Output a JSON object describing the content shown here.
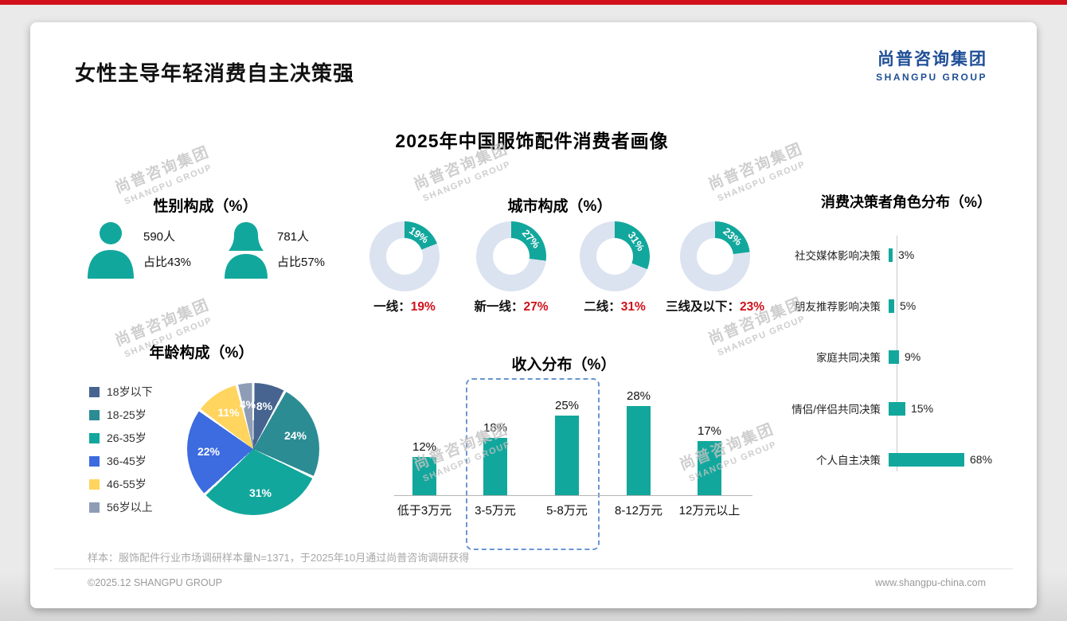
{
  "accent": {
    "teal": "#12a79c",
    "red": "#d0111b",
    "blue": "#1f4e96",
    "donut_rest": "#dbe3f0"
  },
  "header": {
    "page_title": "女性主导年轻消费自主决策强",
    "logo_cn": "尚普咨询集团",
    "logo_en": "SHANGPU GROUP"
  },
  "main_title": "2025年中国服饰配件消费者画像",
  "watermark": {
    "cn": "尚普咨询集团",
    "en": "SHANGPU GROUP"
  },
  "gender": {
    "title": "性别构成（%）",
    "male": {
      "count": "590人",
      "share": "占比43%"
    },
    "female": {
      "count": "781人",
      "share": "占比57%"
    }
  },
  "city": {
    "title": "城市构成（%）",
    "items": [
      {
        "label": "一线：",
        "value": "19%",
        "pct": 19
      },
      {
        "label": "新一线：",
        "value": "27%",
        "pct": 27
      },
      {
        "label": "二线：",
        "value": "31%",
        "pct": 31
      },
      {
        "label": "三线及以下：",
        "value": "23%",
        "pct": 23
      }
    ]
  },
  "age": {
    "title": "年龄构成（%）",
    "items": [
      {
        "label": "18岁以下",
        "value": "8%",
        "pct": 8,
        "color": "#46648f"
      },
      {
        "label": "18-25岁",
        "value": "24%",
        "pct": 24,
        "color": "#2c8c94"
      },
      {
        "label": "26-35岁",
        "value": "31%",
        "pct": 31,
        "color": "#12a79c"
      },
      {
        "label": "36-45岁",
        "value": "22%",
        "pct": 22,
        "color": "#3d6be0"
      },
      {
        "label": "46-55岁",
        "value": "11%",
        "pct": 11,
        "color": "#ffd45f"
      },
      {
        "label": "56岁以上",
        "value": "4%",
        "pct": 4,
        "color": "#8e9db5"
      }
    ]
  },
  "income": {
    "title": "收入分布（%）",
    "items": [
      {
        "label": "低于3万元",
        "value": "12%",
        "pct": 12
      },
      {
        "label": "3-5万元",
        "value": "18%",
        "pct": 18
      },
      {
        "label": "5-8万元",
        "value": "25%",
        "pct": 25
      },
      {
        "label": "8-12万元",
        "value": "28%",
        "pct": 28
      },
      {
        "label": "12万元以上",
        "value": "17%",
        "pct": 17
      }
    ]
  },
  "decision": {
    "title": "消费决策者角色分布（%）",
    "items": [
      {
        "label": "社交媒体影响决策",
        "value": "3%",
        "pct": 3
      },
      {
        "label": "朋友推荐影响决策",
        "value": "5%",
        "pct": 5
      },
      {
        "label": "家庭共同决策",
        "value": "9%",
        "pct": 9
      },
      {
        "label": "情侣/伴侣共同决策",
        "value": "15%",
        "pct": 15
      },
      {
        "label": "个人自主决策",
        "value": "68%",
        "pct": 68
      }
    ]
  },
  "footnote": "样本：服饰配件行业市场调研样本量N=1371，于2025年10月通过尚普咨询调研获得",
  "footer": {
    "copyright": "©2025.12 SHANGPU GROUP",
    "website": "www.shangpu-china.com"
  },
  "chart_data": [
    {
      "type": "pie",
      "title": "性别构成（%）",
      "categories": [
        "男性",
        "女性"
      ],
      "values": [
        43,
        57
      ],
      "counts": [
        590,
        781
      ],
      "unit": "%"
    },
    {
      "type": "pie",
      "subtype": "donut",
      "title": "城市构成（%）",
      "categories": [
        "一线",
        "新一线",
        "二线",
        "三线及以下"
      ],
      "values": [
        19,
        27,
        31,
        23
      ],
      "unit": "%"
    },
    {
      "type": "pie",
      "title": "年龄构成（%）",
      "categories": [
        "18岁以下",
        "18-25岁",
        "26-35岁",
        "36-45岁",
        "46-55岁",
        "56岁以上"
      ],
      "values": [
        8,
        24,
        31,
        22,
        11,
        4
      ],
      "unit": "%",
      "legend_position": "left"
    },
    {
      "type": "bar",
      "title": "收入分布（%）",
      "categories": [
        "低于3万元",
        "3-5万元",
        "5-8万元",
        "8-12万元",
        "12万元以上"
      ],
      "values": [
        12,
        18,
        25,
        28,
        17
      ],
      "unit": "%",
      "highlighted": [
        "3-5万元",
        "5-8万元"
      ],
      "ylim": [
        0,
        30
      ]
    },
    {
      "type": "bar",
      "orientation": "horizontal",
      "title": "消费决策者角色分布（%）",
      "categories": [
        "社交媒体影响决策",
        "朋友推荐影响决策",
        "家庭共同决策",
        "情侣/伴侣共同决策",
        "个人自主决策"
      ],
      "values": [
        3,
        5,
        9,
        15,
        68
      ],
      "unit": "%"
    }
  ]
}
